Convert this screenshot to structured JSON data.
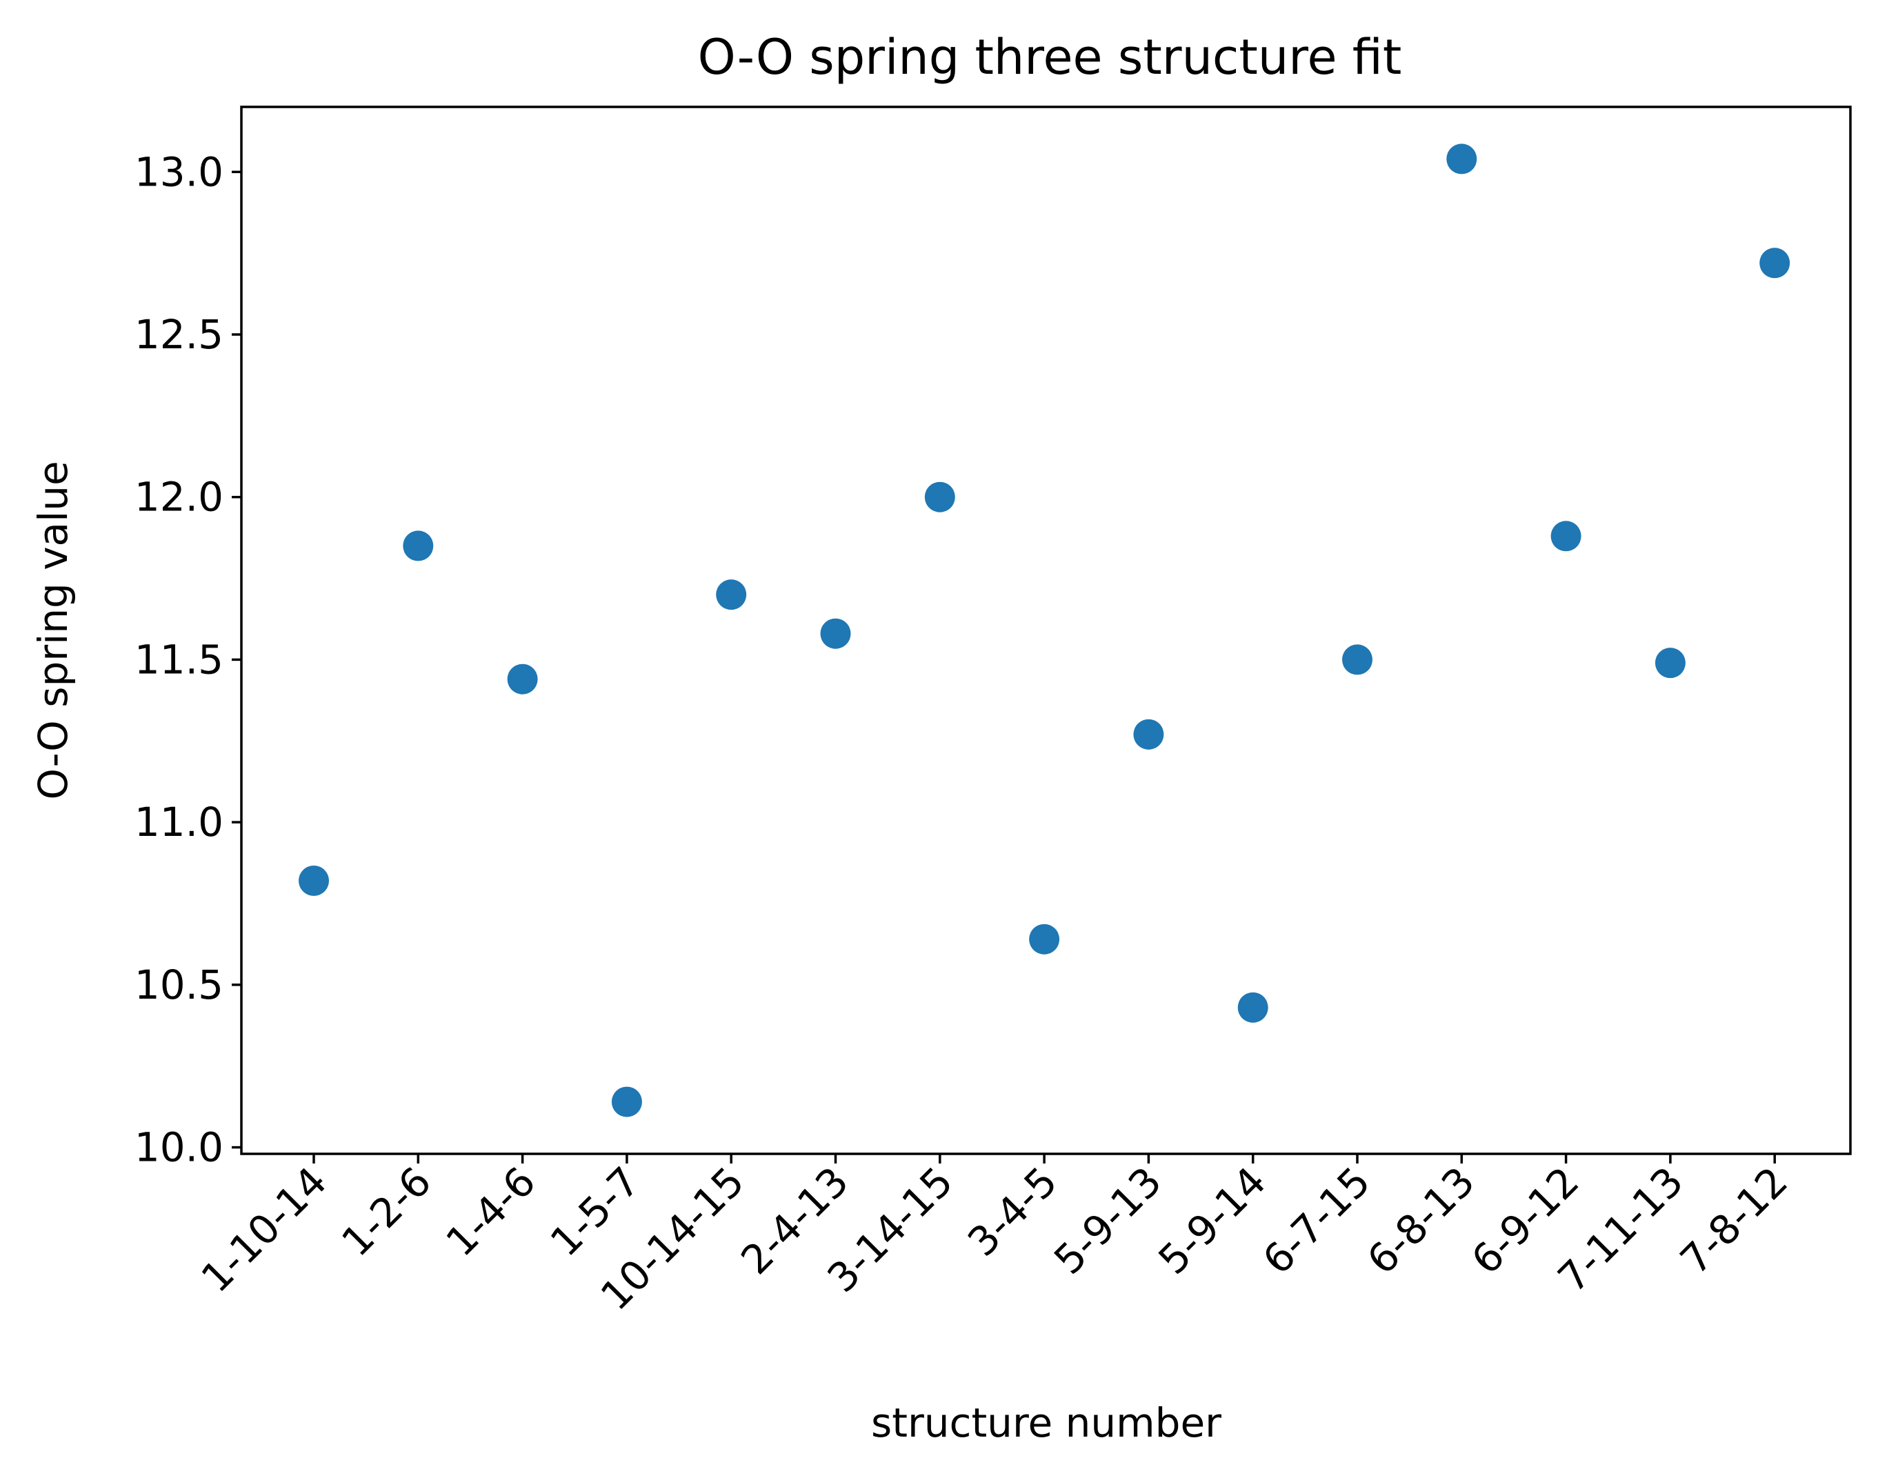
{
  "chart_data": {
    "type": "scatter",
    "title": "O-O spring three structure fit",
    "xlabel": "structure number",
    "ylabel": "O-O spring value",
    "categories": [
      "1-10-14",
      "1-2-6",
      "1-4-6",
      "1-5-7",
      "10-14-15",
      "2-4-13",
      "3-14-15",
      "3-4-5",
      "5-9-13",
      "5-9-14",
      "6-7-15",
      "6-8-13",
      "6-9-12",
      "7-11-13",
      "7-8-12"
    ],
    "values": [
      10.82,
      11.85,
      11.44,
      10.14,
      11.7,
      11.58,
      12.0,
      10.64,
      11.27,
      10.43,
      11.5,
      13.04,
      11.88,
      11.49,
      12.72
    ],
    "ylim": [
      9.98,
      13.2
    ],
    "yticks": [
      10.0,
      10.5,
      11.0,
      11.5,
      12.0,
      12.5,
      13.0
    ],
    "ytick_labels": [
      "10.0",
      "10.5",
      "11.0",
      "11.5",
      "12.0",
      "12.5",
      "13.0"
    ],
    "xtick_rotation": 45,
    "marker_color": "#1f77b4",
    "grid": false,
    "legend": "none"
  }
}
